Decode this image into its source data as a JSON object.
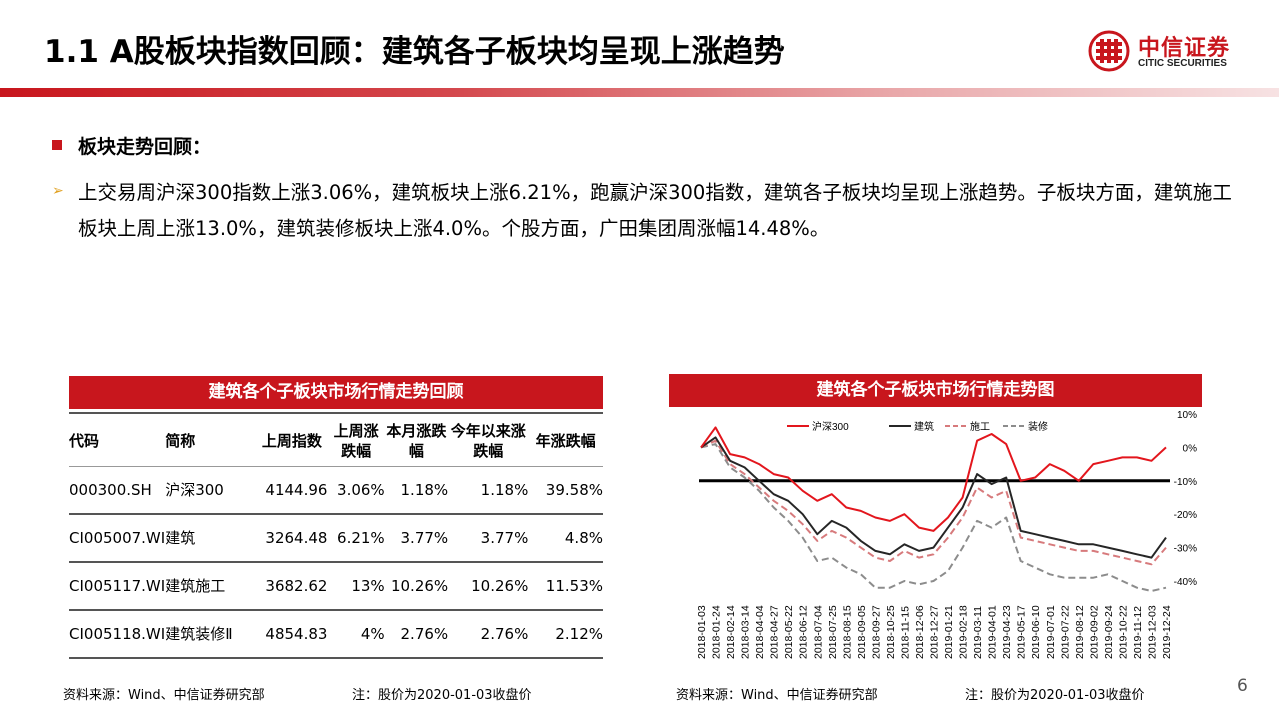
{
  "slide": {
    "title": "1.1 A股板块指数回顾：建筑各子板块均呈现上涨趋势",
    "page_number": "6"
  },
  "logo": {
    "cn": "中信证券",
    "en": "CITIC SECURITIES"
  },
  "section": {
    "heading": "板块走势回顾：",
    "paragraph": "上交易周沪深300指数上涨3.06%，建筑板块上涨6.21%，跑赢沪深300指数，建筑各子板块均呈现上涨趋势。子板块方面，建筑施工板块上周上涨13.0%，建筑装修板块上涨4.0%。个股方面，广田集团周涨幅14.48%。"
  },
  "table": {
    "title": "建筑各个子板块市场行情走势回顾",
    "headers": [
      "代码",
      "简称",
      "上周指数",
      "上周涨跌幅",
      "本月涨跌幅",
      "今年以来涨跌幅",
      "年涨跌幅"
    ],
    "rows": [
      [
        "000300.SH",
        "沪深300",
        "4144.96",
        "3.06%",
        "1.18%",
        "1.18%",
        "39.58%"
      ],
      [
        "CI005007.WI",
        "建筑",
        "3264.48",
        "6.21%",
        "3.77%",
        "3.77%",
        "4.8%"
      ],
      [
        "CI005117.WI",
        "建筑施工",
        "3682.62",
        "13%",
        "10.26%",
        "10.26%",
        "11.53%"
      ],
      [
        "CI005118.WI",
        "建筑装修Ⅱ",
        "4854.83",
        "4%",
        "2.76%",
        "2.76%",
        "2.12%"
      ]
    ],
    "source": "资料来源：Wind、中信证券研究部",
    "note": "注：股价为2020-01-03收盘价"
  },
  "chart": {
    "source": "资料来源：Wind、中信证券研究部",
    "note": "注：股价为2020-01-03收盘价"
  },
  "chart_data": {
    "type": "line",
    "title": "建筑各个子板块市场行情走势图",
    "xlabel": "",
    "ylabel": "",
    "x": [
      "2018-01-03",
      "2018-01-24",
      "2018-02-14",
      "2018-03-14",
      "2018-04-04",
      "2018-04-27",
      "2018-05-22",
      "2018-06-12",
      "2018-07-04",
      "2018-07-25",
      "2018-08-15",
      "2018-09-05",
      "2018-09-27",
      "2018-10-25",
      "2018-11-15",
      "2018-12-06",
      "2018-12-27",
      "2019-01-21",
      "2019-02-18",
      "2019-03-11",
      "2019-04-01",
      "2019-04-23",
      "2019-05-17",
      "2019-06-10",
      "2019-07-01",
      "2019-07-22",
      "2019-08-12",
      "2019-09-02",
      "2019-09-24",
      "2019-10-22",
      "2019-11-12",
      "2019-12-03",
      "2019-12-24"
    ],
    "ylim": [
      -40,
      10
    ],
    "yticks": [
      "10%",
      "0%",
      "-10%",
      "-20%",
      "-30%",
      "-40%"
    ],
    "ytick_values": [
      10,
      0,
      -10,
      -20,
      -30,
      -40
    ],
    "reference_line": -10,
    "legend": [
      "沪深300",
      "建筑",
      "施工",
      "装修"
    ],
    "series": [
      {
        "name": "沪深300",
        "color": "#e3161d",
        "dash": "solid",
        "values": [
          0,
          6,
          -2,
          -3,
          -5,
          -8,
          -9,
          -13,
          -16,
          -14,
          -18,
          -19,
          -21,
          -22,
          -20,
          -24,
          -25,
          -21,
          -15,
          2,
          4,
          1,
          -10,
          -9,
          -5,
          -7,
          -10,
          -5,
          -4,
          -3,
          -3,
          -4,
          0
        ]
      },
      {
        "name": "建筑",
        "color": "#262626",
        "dash": "solid",
        "values": [
          0,
          3,
          -4,
          -6,
          -10,
          -14,
          -16,
          -20,
          -26,
          -22,
          -24,
          -28,
          -31,
          -32,
          -29,
          -31,
          -30,
          -24,
          -18,
          -8,
          -11,
          -9,
          -25,
          -26,
          -27,
          -28,
          -29,
          -29,
          -30,
          -31,
          -32,
          -33,
          -27
        ]
      },
      {
        "name": "施工",
        "color": "#d77a7c",
        "dash": "dashed",
        "values": [
          0,
          2,
          -5,
          -8,
          -12,
          -16,
          -19,
          -23,
          -28,
          -25,
          -27,
          -30,
          -33,
          -34,
          -31,
          -33,
          -32,
          -27,
          -21,
          -12,
          -15,
          -13,
          -27,
          -28,
          -29,
          -30,
          -31,
          -31,
          -32,
          -33,
          -34,
          -35,
          -30
        ]
      },
      {
        "name": "装修",
        "color": "#8c8c8c",
        "dash": "dashed",
        "values": [
          0,
          1,
          -6,
          -9,
          -13,
          -18,
          -22,
          -27,
          -34,
          -33,
          -36,
          -38,
          -42,
          -42,
          -40,
          -41,
          -40,
          -37,
          -30,
          -22,
          -24,
          -21,
          -34,
          -36,
          -38,
          -39,
          -39,
          -39,
          -38,
          -40,
          -42,
          -43,
          -42
        ]
      }
    ]
  },
  "colors": {
    "brand_red": "#c8161d",
    "bullet_arrow": "#e0a020"
  }
}
